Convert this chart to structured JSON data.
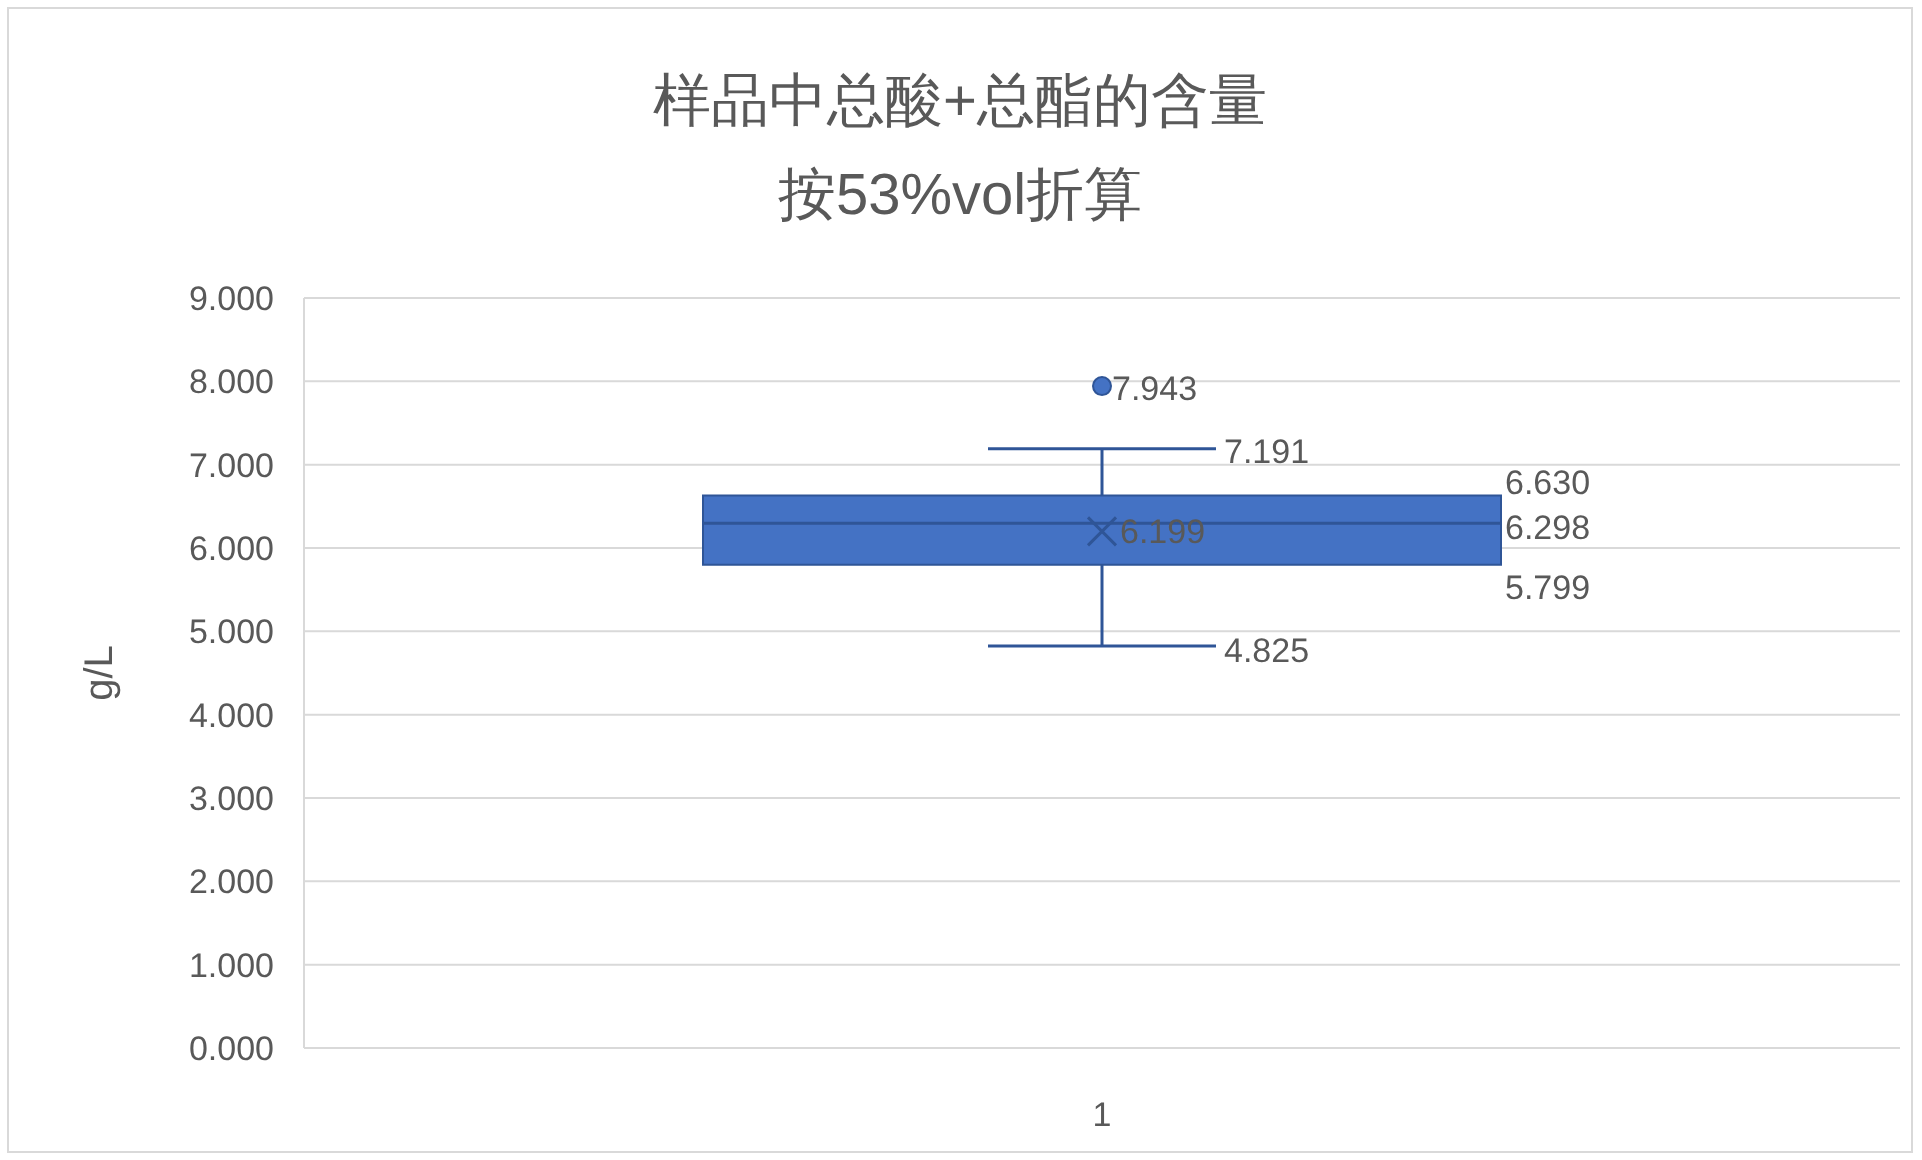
{
  "chart_data": {
    "type": "box",
    "title": "样品中总酸+总酯的含量",
    "subtitle": "按53%vol折算",
    "ylabel": "g/L",
    "categories": [
      "1"
    ],
    "boxes": [
      {
        "low": 4.825,
        "q1": 5.799,
        "median": 6.298,
        "q3": 6.63,
        "high": 7.191,
        "mean": 6.199,
        "outliers": [
          7.943
        ]
      }
    ],
    "color": "#4472c4",
    "ylim": [
      0,
      9
    ],
    "yticks": [
      {
        "value": 0,
        "label": "0.000"
      },
      {
        "value": 1,
        "label": "1.000"
      },
      {
        "value": 2,
        "label": "2.000"
      },
      {
        "value": 3,
        "label": "3.000"
      },
      {
        "value": 4,
        "label": "4.000"
      },
      {
        "value": 5,
        "label": "5.000"
      },
      {
        "value": 6,
        "label": "6.000"
      },
      {
        "value": 7,
        "label": "7.000"
      },
      {
        "value": 8,
        "label": "8.000"
      },
      {
        "value": 9,
        "label": "9.000"
      }
    ],
    "grid": "y",
    "annotations": [
      "7.943",
      "7.191",
      "6.630",
      "6.298",
      "6.199",
      "5.799",
      "4.825"
    ]
  }
}
